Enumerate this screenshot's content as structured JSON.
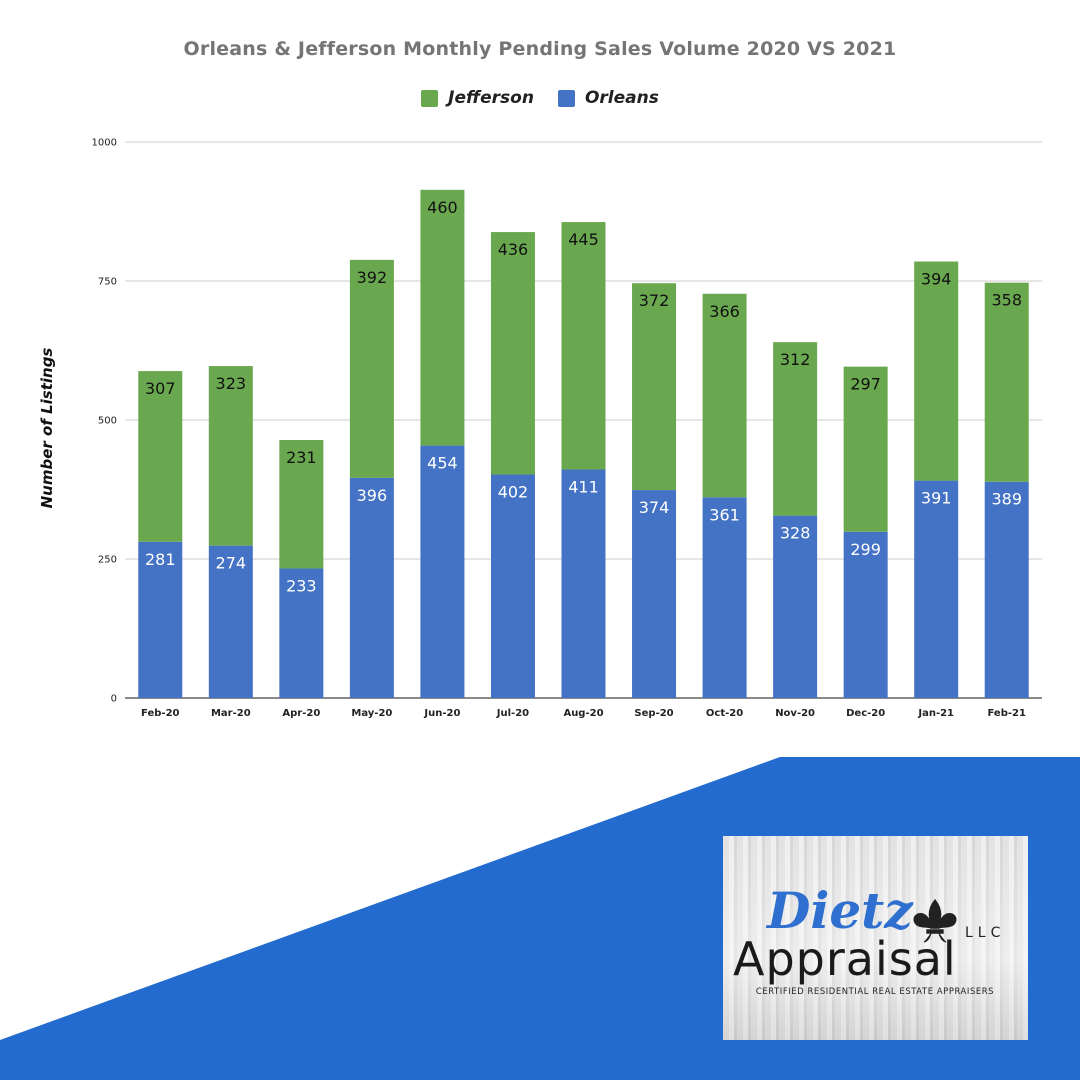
{
  "colors": {
    "orleans": "#4472C4",
    "jefferson": "#6AA84F",
    "background_shape": "#236BCF",
    "grid": "#cccccc",
    "axis": "#444444"
  },
  "chart_data": {
    "type": "bar",
    "stacked": true,
    "title": "Orleans & Jefferson  Monthly Pending Sales Volume 2020 VS 2021",
    "xlabel": "",
    "ylabel": "Number of Listings",
    "ylim": [
      0,
      1000
    ],
    "yticks": [
      "0",
      "250",
      "500",
      "750",
      "1000"
    ],
    "grid": true,
    "legend_position": "top",
    "categories": [
      "Feb-20",
      "Mar-20",
      "Apr-20",
      "May-20",
      "Jun-20",
      "Jul-20",
      "Aug-20",
      "Sep-20",
      "Oct-20",
      "Nov-20",
      "Dec-20",
      "Jan-21",
      "Feb-21"
    ],
    "series": [
      {
        "name": "Orleans",
        "values": [
          281,
          274,
          233,
          396,
          454,
          402,
          411,
          374,
          361,
          328,
          299,
          391,
          389
        ]
      },
      {
        "name": "Jefferson",
        "values": [
          307,
          323,
          231,
          392,
          460,
          436,
          445,
          372,
          366,
          312,
          297,
          394,
          358
        ]
      }
    ],
    "legend": [
      "Jefferson",
      "Orleans"
    ]
  },
  "logo": {
    "script": "Dietz",
    "suffix": "LLC",
    "name": "Appraisal",
    "tagline": "CERTIFIED RESIDENTIAL REAL ESTATE APPRAISERS",
    "emblem": "fleur-de-lis-icon"
  }
}
